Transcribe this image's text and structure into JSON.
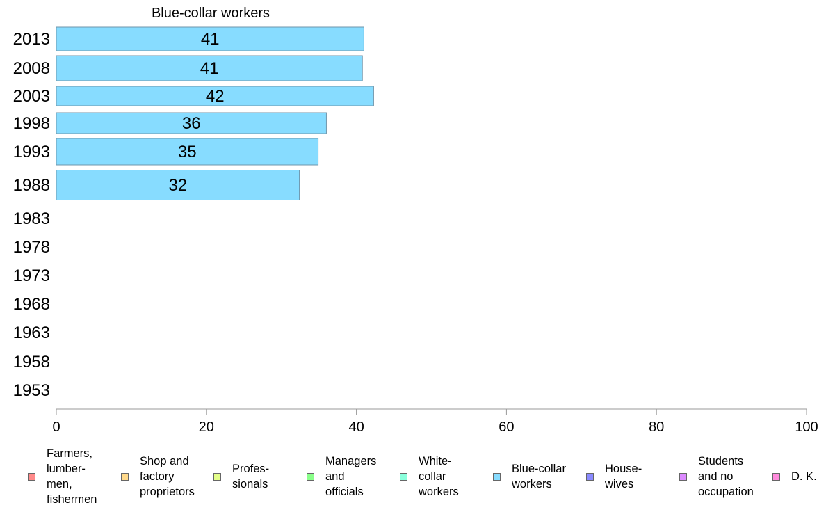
{
  "chart_data": {
    "type": "bar",
    "orientation": "horizontal",
    "title": "Blue-collar workers",
    "categories": [
      "2013",
      "2008",
      "2003",
      "1998",
      "1993",
      "1988",
      "1983",
      "1978",
      "1973",
      "1968",
      "1963",
      "1958",
      "1953"
    ],
    "series": [
      {
        "name": "Blue-collar workers",
        "values": [
          41,
          40.8,
          42.3,
          36,
          34.9,
          32.4,
          null,
          null,
          null,
          null,
          null,
          null,
          null
        ],
        "labels": [
          "41",
          "41",
          "42",
          "36",
          "35",
          "32",
          "",
          "",
          "",
          "",
          "",
          "",
          ""
        ],
        "color": "#87dcff"
      }
    ],
    "xlim": [
      0,
      100
    ],
    "xticks": [
      "0",
      "20",
      "40",
      "60",
      "80",
      "100"
    ],
    "grid": false,
    "legend_position": "bottom"
  },
  "legend": {
    "items": [
      {
        "label": "Farmers,\nlumber-\nmen,\nfishermen",
        "color": "#ff8a8a"
      },
      {
        "label": "Shop and\nfactory\nproprietors",
        "color": "#ffd98a"
      },
      {
        "label": "Profes-\nsionals",
        "color": "#e4ff8a"
      },
      {
        "label": "Managers\nand\nofficials",
        "color": "#8aff8a"
      },
      {
        "label": "White-\ncollar\nworkers",
        "color": "#8affdc"
      },
      {
        "label": "Blue-collar\nworkers",
        "color": "#87dcff"
      },
      {
        "label": "House-\nwives",
        "color": "#8a8aff"
      },
      {
        "label": "Students\nand no\noccupation",
        "color": "#dc8aff"
      },
      {
        "label": "D. K.",
        "color": "#ff8adc"
      }
    ]
  }
}
